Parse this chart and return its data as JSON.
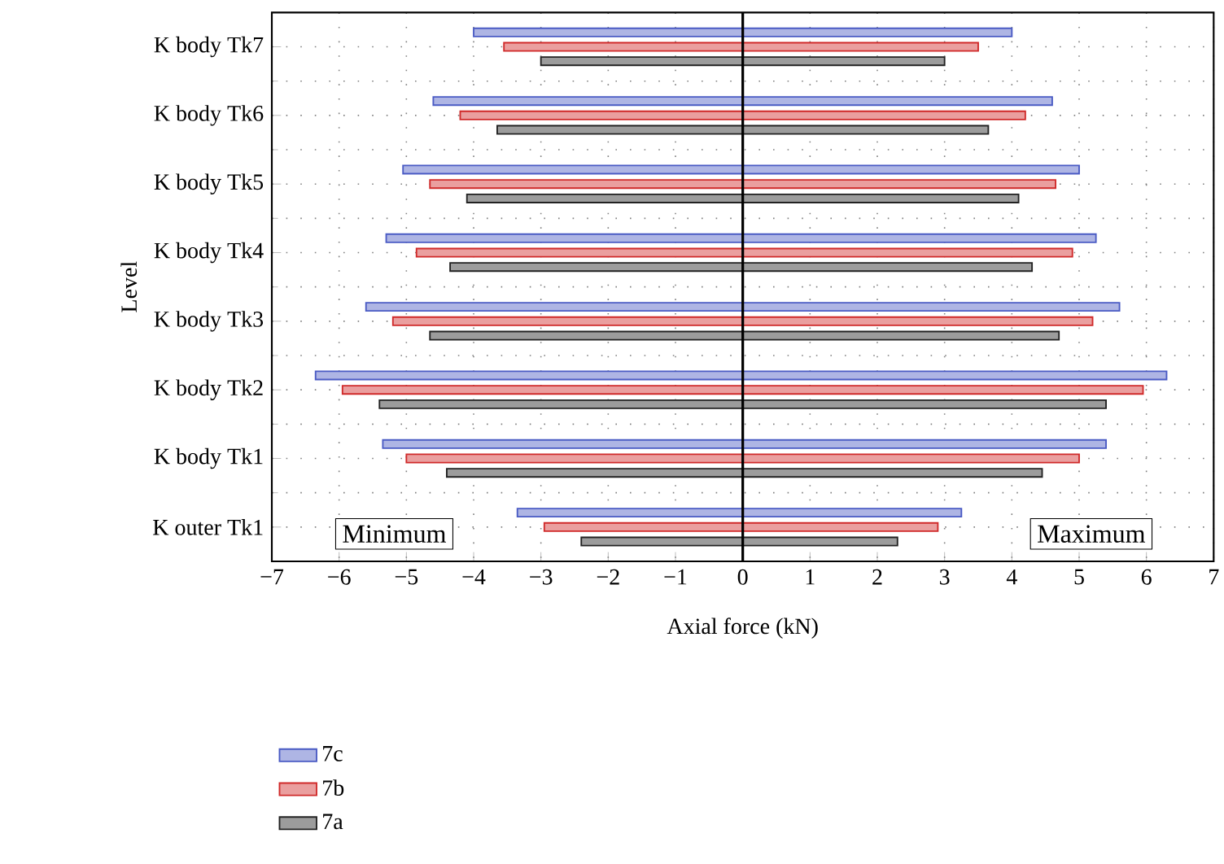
{
  "chart_data": {
    "type": "bar",
    "orientation": "horizontal",
    "xlabel": "Axial force (kN)",
    "ylabel": "Level",
    "categories": [
      "K body Tk7",
      "K body Tk6",
      "K body Tk5",
      "K body Tk4",
      "K body Tk3",
      "K body Tk2",
      "K body Tk1",
      "K outer Tk1"
    ],
    "series": [
      {
        "name": "7c",
        "color": "#4a5bc4",
        "base": [
          -4.0,
          -4.6,
          -5.05,
          -5.3,
          -5.6,
          -6.35,
          -5.35,
          -3.35
        ],
        "values": [
          8.0,
          9.2,
          10.05,
          10.55,
          11.2,
          12.65,
          10.75,
          6.6
        ]
      },
      {
        "name": "7b",
        "color": "#d02a2a",
        "base": [
          -3.55,
          -4.2,
          -4.65,
          -4.85,
          -5.2,
          -5.95,
          -5.0,
          -2.95
        ],
        "values": [
          7.05,
          8.4,
          9.3,
          9.75,
          10.4,
          11.9,
          10.0,
          5.85
        ]
      },
      {
        "name": "7a",
        "color": "#222222",
        "base": [
          -3.0,
          -3.65,
          -4.1,
          -4.35,
          -4.65,
          -5.4,
          -4.4,
          -2.4
        ],
        "values": [
          6.0,
          7.3,
          8.2,
          8.65,
          9.35,
          10.8,
          8.85,
          4.7
        ]
      }
    ],
    "xlim": [
      -7,
      7
    ],
    "xticks": [
      {
        "value": -7,
        "label": "−7"
      },
      {
        "value": -6,
        "label": "−6"
      },
      {
        "value": -5,
        "label": "−5"
      },
      {
        "value": -4,
        "label": "−4"
      },
      {
        "value": -3,
        "label": "−3"
      },
      {
        "value": -2,
        "label": "−2"
      },
      {
        "value": -1,
        "label": "−1"
      },
      0,
      1,
      2,
      3,
      4,
      5,
      6,
      7
    ],
    "ref_lines": [
      {
        "axis": "x",
        "value": 0,
        "color": "#000000"
      }
    ],
    "annotations": [
      "Minimum",
      "Maximum"
    ],
    "grid": true,
    "legend": "bottom"
  }
}
